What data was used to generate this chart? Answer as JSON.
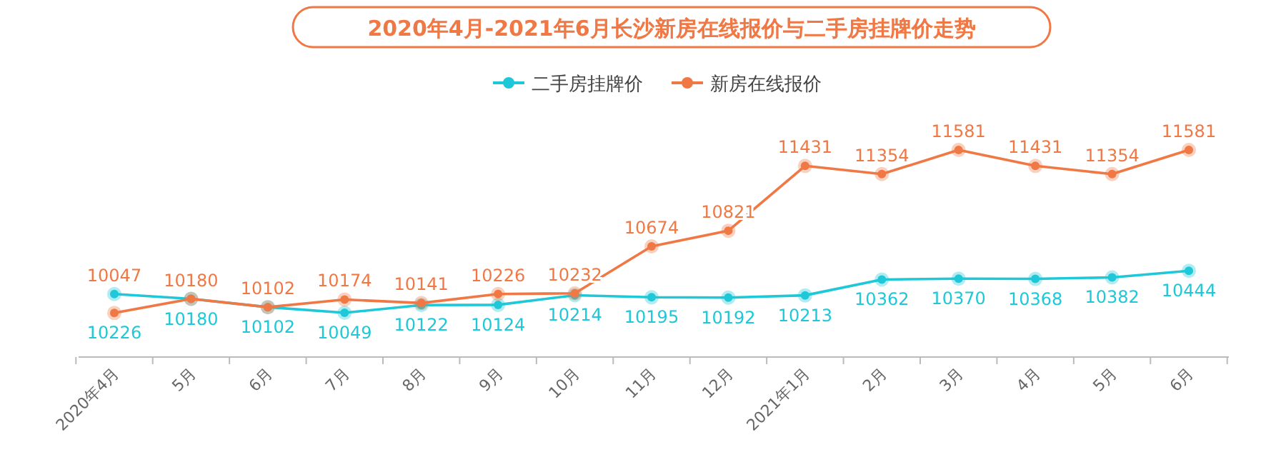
{
  "chart_data": {
    "type": "line",
    "title": "2020年4月-2021年6月长沙新房在线报价与二手房挂牌价走势",
    "categories": [
      "2020年4月",
      "5月",
      "6月",
      "7月",
      "8月",
      "9月",
      "10月",
      "11月",
      "12月",
      "2021年1月",
      "2月",
      "3月",
      "4月",
      "5月",
      "6月"
    ],
    "series": [
      {
        "name": "二手房挂牌价",
        "color": "#1ec8d8",
        "values": [
          10226,
          10180,
          10102,
          10049,
          10122,
          10124,
          10214,
          10195,
          10192,
          10213,
          10362,
          10370,
          10368,
          10382,
          10444
        ]
      },
      {
        "name": "新房在线报价",
        "color": "#f07845",
        "values": [
          10047,
          10180,
          10102,
          10174,
          10141,
          10226,
          10232,
          10674,
          10821,
          11431,
          11354,
          11581,
          11431,
          11354,
          11581
        ]
      }
    ],
    "data_labels": true,
    "legend": "top",
    "marker": "circle"
  }
}
